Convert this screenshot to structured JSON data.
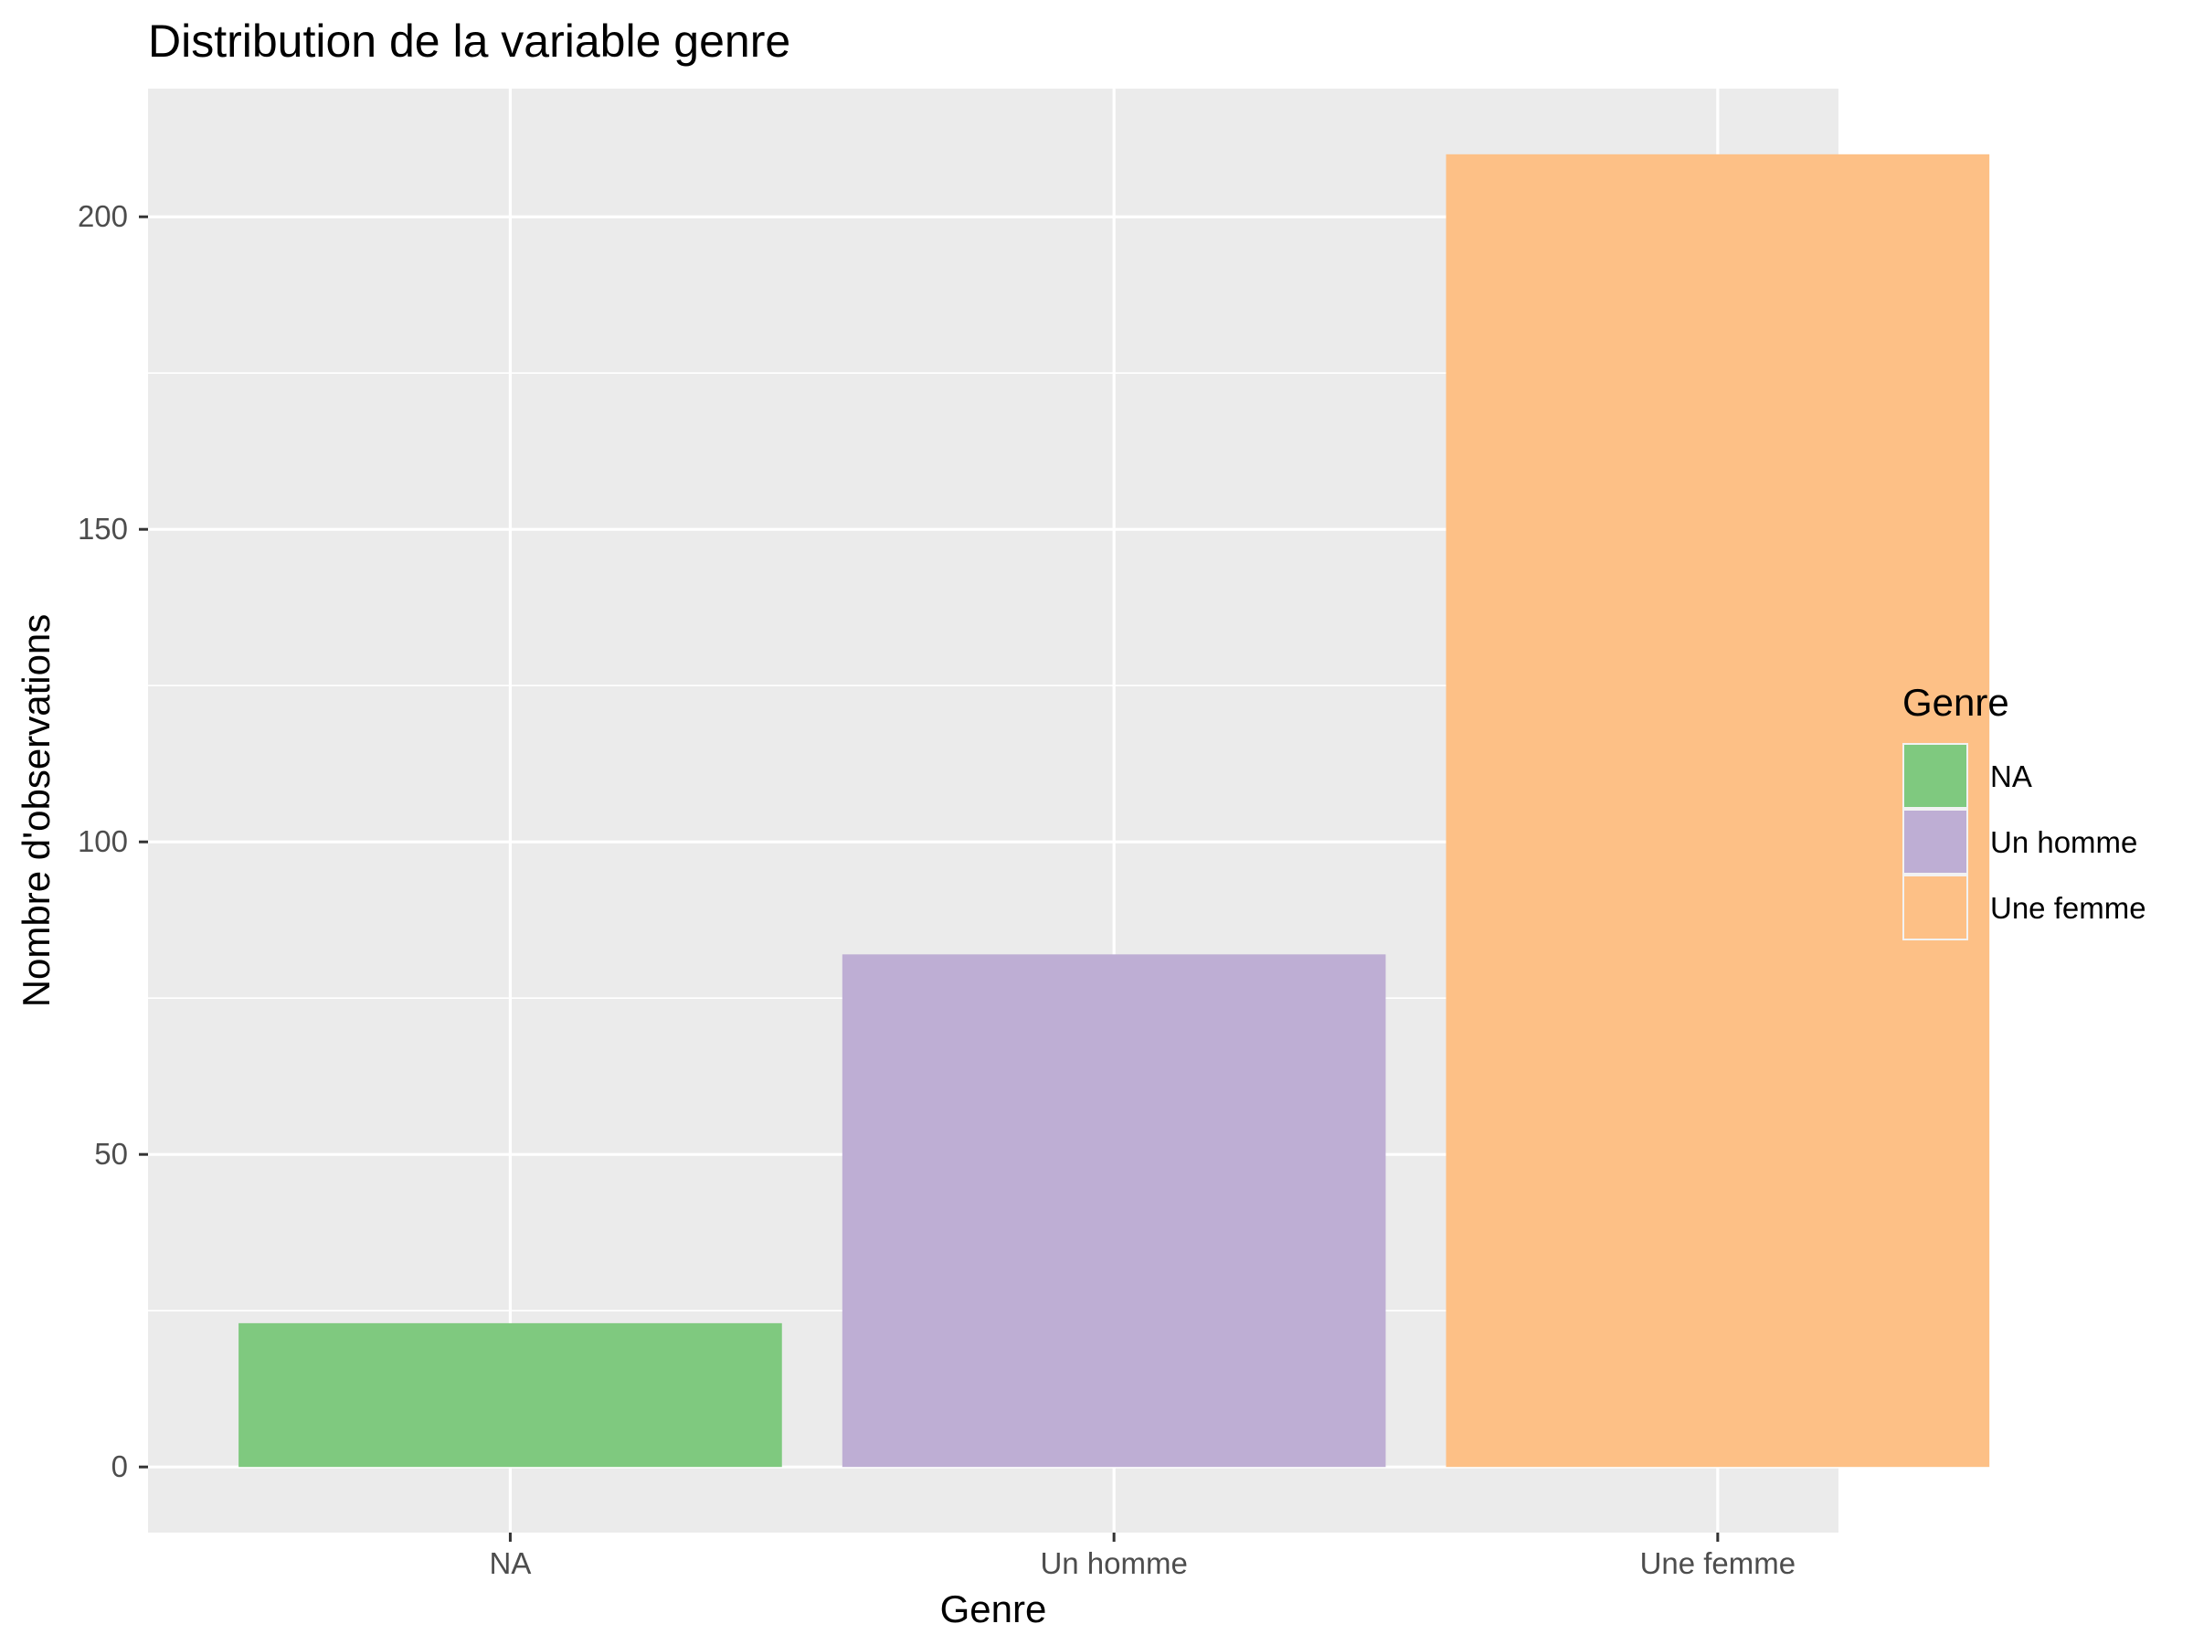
{
  "chart_data": {
    "type": "bar",
    "title": "Distribution de la variable genre",
    "xlabel": "Genre",
    "ylabel": "Nombre d'observations",
    "categories": [
      "NA",
      "Un homme",
      "Une femme"
    ],
    "values": [
      23,
      82,
      210
    ],
    "colors": [
      "#7fc97f",
      "#beaed4",
      "#fdc086"
    ],
    "ylim": [
      -10.5,
      220.5
    ],
    "yticks": [
      0,
      50,
      100,
      150,
      200
    ],
    "grid": true,
    "panel_background": "#ebebeb",
    "legend": {
      "title": "Genre",
      "position": "right",
      "entries": [
        "NA",
        "Un homme",
        "Une femme"
      ]
    }
  }
}
